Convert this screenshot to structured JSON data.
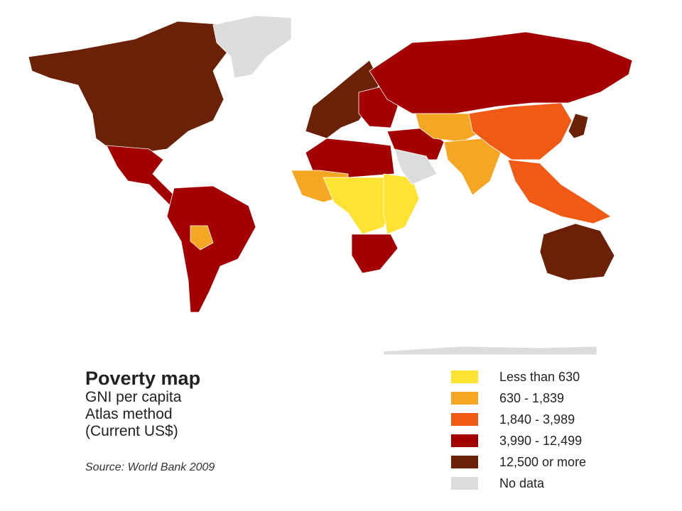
{
  "map": {
    "title": "Poverty map",
    "subtitle_lines": [
      "GNI per capita",
      "Atlas method",
      "(Current US$)"
    ],
    "source": "Source: World Bank 2009",
    "legend": [
      {
        "label": "Less than 630",
        "color": "#FFE333"
      },
      {
        "label": "630 - 1,839",
        "color": "#F5A623"
      },
      {
        "label": "1,840 - 3,989",
        "color": "#F05A14"
      },
      {
        "label": "3,990 - 12,499",
        "color": "#A50000"
      },
      {
        "label": "12,500 or more",
        "color": "#6B2106"
      },
      {
        "label": "No data",
        "color": "#DCDCDC"
      }
    ],
    "regions": [
      {
        "name": "north-america",
        "class": 4
      },
      {
        "name": "greenland",
        "class": 5
      },
      {
        "name": "mexico-central-america",
        "class": 3
      },
      {
        "name": "south-america",
        "class": 3
      },
      {
        "name": "bolivia",
        "class": 1
      },
      {
        "name": "europe-west",
        "class": 4
      },
      {
        "name": "eastern-europe",
        "class": 3
      },
      {
        "name": "russia",
        "class": 3
      },
      {
        "name": "north-africa",
        "class": 3
      },
      {
        "name": "west-africa",
        "class": 1
      },
      {
        "name": "sahel-central-africa",
        "class": 0
      },
      {
        "name": "east-africa",
        "class": 0
      },
      {
        "name": "southern-africa",
        "class": 3
      },
      {
        "name": "middle-east",
        "class": 3
      },
      {
        "name": "arabian-peninsula",
        "class": 5
      },
      {
        "name": "central-asia",
        "class": 1
      },
      {
        "name": "india",
        "class": 1
      },
      {
        "name": "china",
        "class": 2
      },
      {
        "name": "japan",
        "class": 4
      },
      {
        "name": "southeast-asia",
        "class": 2
      },
      {
        "name": "australia",
        "class": 4
      },
      {
        "name": "antarctica",
        "class": 5
      }
    ]
  }
}
